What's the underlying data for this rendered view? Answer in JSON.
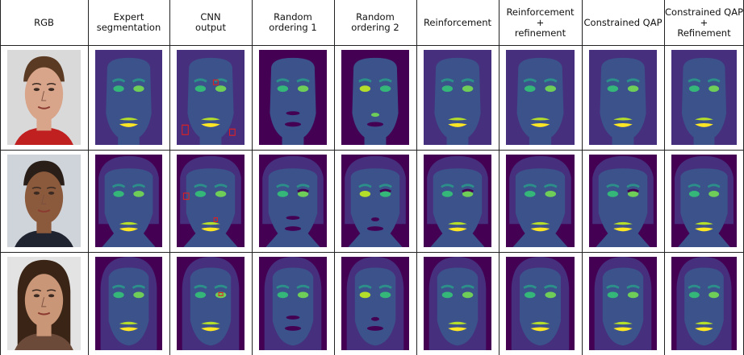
{
  "headers": [
    "RGB",
    "Expert\nsegmentation",
    "CNN\noutput",
    "Random\nordering 1",
    "Random\nordering 2",
    "Reinforcement",
    "Reinforcement\n+\nrefinement",
    "Constrained QAP",
    "Constrained QAP\n+\nRefinement"
  ],
  "colors": {
    "background": "#440154",
    "hair": "#46307e",
    "skin": "#3b528b",
    "brows": "#2c8f8a",
    "eye_left": "#35b779",
    "eye_right": "#6ece58",
    "nose": "#21918c",
    "mouth": "#fde725",
    "lower_lip": "#b5de2b",
    "annotation": "#e02020"
  },
  "rows": [
    {
      "subject": "man-red-shirt",
      "photo_bg": "#d9d9d9",
      "skin_tone": "#d8a48a",
      "hair_tone": "#5a3a22",
      "shirt": "#c02020"
    },
    {
      "subject": "man-suit",
      "photo_bg": "#cfd4da",
      "skin_tone": "#8b5a3c",
      "hair_tone": "#2a1e18",
      "shirt": "#1f2430"
    },
    {
      "subject": "woman-long-hair",
      "photo_bg": "#e3e3e3",
      "skin_tone": "#c99677",
      "hair_tone": "#3a2416",
      "shirt": "#6b4a3a"
    }
  ],
  "variants": [
    "expert",
    "cnn",
    "rand1",
    "rand2",
    "reinf",
    "reinf_ref",
    "qap",
    "qap_ref"
  ]
}
